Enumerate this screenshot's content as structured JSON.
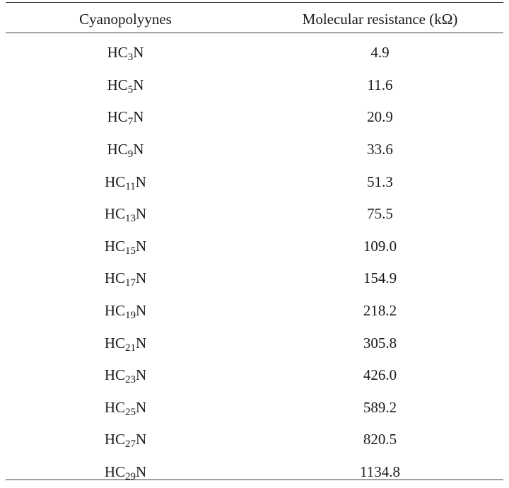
{
  "table": {
    "headers": {
      "col1": "Cyanopolyynes",
      "col2": "Molecular resistance (kΩ)"
    },
    "rows": [
      {
        "prefix": "HC",
        "sub": "3",
        "suffix": "N",
        "value": "4.9"
      },
      {
        "prefix": "HC",
        "sub": "5",
        "suffix": "N",
        "value": "11.6"
      },
      {
        "prefix": "HC",
        "sub": "7",
        "suffix": "N",
        "value": "20.9"
      },
      {
        "prefix": "HC",
        "sub": "9",
        "suffix": "N",
        "value": "33.6"
      },
      {
        "prefix": "HC",
        "sub": "11",
        "suffix": "N",
        "value": "51.3"
      },
      {
        "prefix": "HC",
        "sub": "13",
        "suffix": "N",
        "value": "75.5"
      },
      {
        "prefix": "HC",
        "sub": "15",
        "suffix": "N",
        "value": "109.0"
      },
      {
        "prefix": "HC",
        "sub": "17",
        "suffix": "N",
        "value": "154.9"
      },
      {
        "prefix": "HC",
        "sub": "19",
        "suffix": "N",
        "value": "218.2"
      },
      {
        "prefix": "HC",
        "sub": "21",
        "suffix": "N",
        "value": "305.8"
      },
      {
        "prefix": "HC",
        "sub": "23",
        "suffix": "N",
        "value": "426.0"
      },
      {
        "prefix": "HC",
        "sub": "25",
        "suffix": "N",
        "value": "589.2"
      },
      {
        "prefix": "HC",
        "sub": "27",
        "suffix": "N",
        "value": "820.5"
      },
      {
        "prefix": "HC",
        "sub": "29",
        "suffix": "N",
        "value": "1134.8"
      }
    ]
  }
}
